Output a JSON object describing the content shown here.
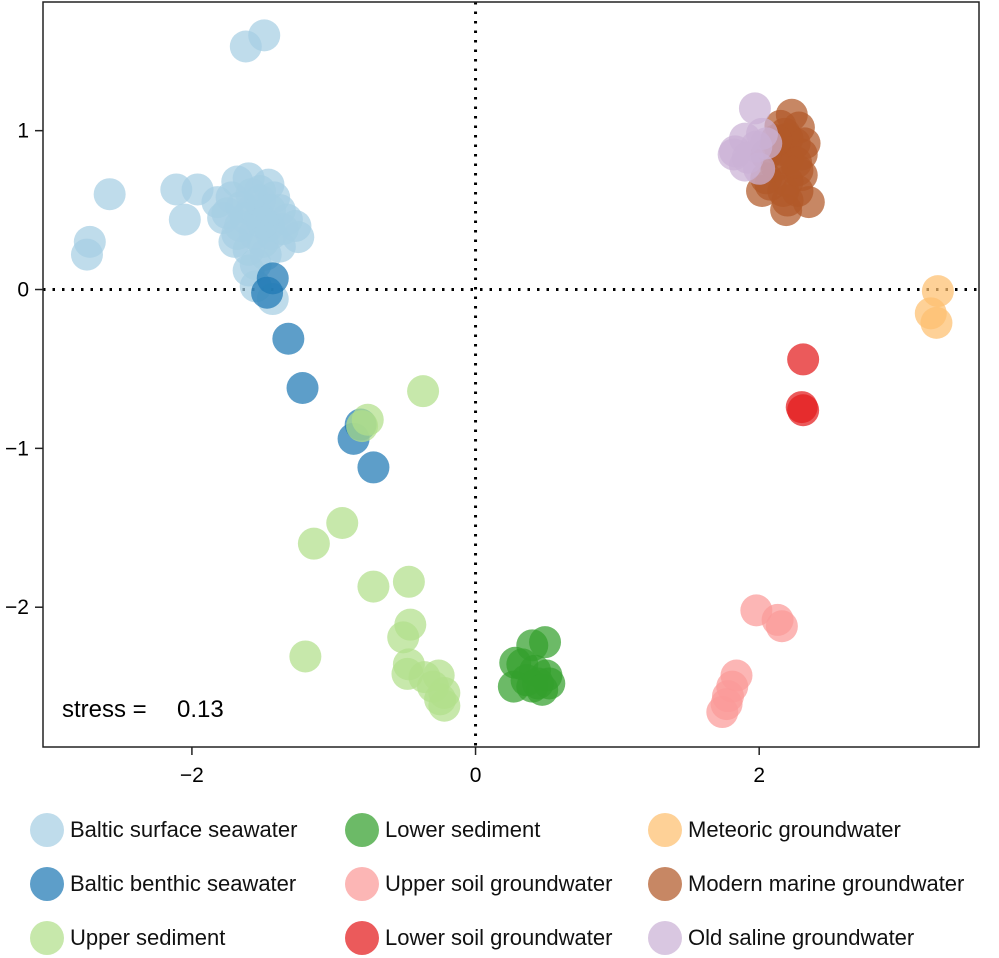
{
  "chart_data": {
    "type": "scatter",
    "xlabel": "",
    "ylabel": "",
    "xlim": [
      -3.05,
      3.55
    ],
    "ylim": [
      -2.88,
      1.81
    ],
    "xticks": [
      -2,
      0,
      2
    ],
    "yticks": [
      1,
      0,
      -1,
      -2
    ],
    "xtick_labels": [
      "−2",
      "0",
      "2"
    ],
    "ytick_labels": [
      "1",
      "0",
      "−1",
      "−2"
    ],
    "reference_lines": {
      "x": 0,
      "y": 0,
      "style": "dotted"
    },
    "annotation": {
      "label": "stress =",
      "value": "0.13"
    },
    "legend_position": "bottom",
    "series": [
      {
        "name": "Baltic surface seawater",
        "color": "#a6cee3",
        "points": [
          [
            -1.62,
            1.53
          ],
          [
            -1.49,
            1.6
          ],
          [
            -2.72,
            0.3
          ],
          [
            -2.74,
            0.22
          ],
          [
            -2.58,
            0.6
          ],
          [
            -2.11,
            0.63
          ],
          [
            -1.96,
            0.63
          ],
          [
            -2.05,
            0.44
          ],
          [
            -1.82,
            0.55
          ],
          [
            -1.75,
            0.48
          ],
          [
            -1.68,
            0.68
          ],
          [
            -1.6,
            0.7
          ],
          [
            -1.52,
            0.62
          ],
          [
            -1.46,
            0.66
          ],
          [
            -1.42,
            0.58
          ],
          [
            -1.38,
            0.5
          ],
          [
            -1.33,
            0.44
          ],
          [
            -1.27,
            0.4
          ],
          [
            -1.25,
            0.33
          ],
          [
            -1.38,
            0.27
          ],
          [
            -1.48,
            0.22
          ],
          [
            -1.55,
            0.16
          ],
          [
            -1.6,
            0.12
          ],
          [
            -1.7,
            0.3
          ],
          [
            -1.78,
            0.45
          ],
          [
            -1.65,
            0.52
          ],
          [
            -1.58,
            0.5
          ],
          [
            -1.52,
            0.45
          ],
          [
            -1.46,
            0.4
          ],
          [
            -1.56,
            0.35
          ],
          [
            -1.66,
            0.4
          ],
          [
            -1.62,
            0.45
          ],
          [
            -1.5,
            0.3
          ],
          [
            -1.44,
            0.35
          ],
          [
            -1.52,
            0.56
          ],
          [
            -1.72,
            0.58
          ],
          [
            -1.58,
            0.6
          ],
          [
            -1.45,
            0.5
          ],
          [
            -1.6,
            0.25
          ],
          [
            -1.55,
            0.02
          ],
          [
            -1.43,
            -0.06
          ],
          [
            -1.68,
            0.35
          ],
          [
            -1.36,
            0.38
          ],
          [
            -1.5,
            0.42
          ]
        ]
      },
      {
        "name": "Baltic benthic seawater",
        "color": "#1f78b4",
        "points": [
          [
            -1.43,
            0.07
          ],
          [
            -1.47,
            -0.02
          ],
          [
            -1.32,
            -0.31
          ],
          [
            -1.22,
            -0.62
          ],
          [
            -0.81,
            -0.85
          ],
          [
            -0.86,
            -0.94
          ],
          [
            -0.72,
            -1.12
          ]
        ]
      },
      {
        "name": "Upper sediment",
        "color": "#b2df8a",
        "points": [
          [
            -0.37,
            -0.64
          ],
          [
            -0.76,
            -0.82
          ],
          [
            -0.8,
            -0.86
          ],
          [
            -0.94,
            -1.47
          ],
          [
            -1.14,
            -1.6
          ],
          [
            -0.72,
            -1.87
          ],
          [
            -0.47,
            -1.84
          ],
          [
            -1.2,
            -2.31
          ],
          [
            -0.46,
            -2.11
          ],
          [
            -0.51,
            -2.19
          ],
          [
            -0.47,
            -2.36
          ],
          [
            -0.48,
            -2.42
          ],
          [
            -0.36,
            -2.44
          ],
          [
            -0.26,
            -2.43
          ],
          [
            -0.3,
            -2.5
          ],
          [
            -0.22,
            -2.54
          ],
          [
            -0.25,
            -2.58
          ],
          [
            -0.22,
            -2.62
          ]
        ]
      },
      {
        "name": "Lower sediment",
        "color": "#33a02c",
        "points": [
          [
            0.49,
            -2.22
          ],
          [
            0.4,
            -2.24
          ],
          [
            0.28,
            -2.35
          ],
          [
            0.33,
            -2.36
          ],
          [
            0.42,
            -2.4
          ],
          [
            0.5,
            -2.43
          ],
          [
            0.36,
            -2.46
          ],
          [
            0.44,
            -2.48
          ],
          [
            0.52,
            -2.48
          ],
          [
            0.27,
            -2.5
          ],
          [
            0.4,
            -2.5
          ],
          [
            0.47,
            -2.52
          ]
        ]
      },
      {
        "name": "Upper soil groundwater",
        "color": "#fb9a99",
        "points": [
          [
            1.98,
            -2.02
          ],
          [
            2.13,
            -2.08
          ],
          [
            2.16,
            -2.12
          ],
          [
            1.84,
            -2.43
          ],
          [
            1.81,
            -2.5
          ],
          [
            1.78,
            -2.56
          ],
          [
            1.77,
            -2.61
          ],
          [
            1.74,
            -2.66
          ]
        ]
      },
      {
        "name": "Lower soil groundwater",
        "color": "#e31a1c",
        "points": [
          [
            2.31,
            -0.44
          ],
          [
            2.3,
            -0.74
          ],
          [
            2.31,
            -0.76
          ]
        ]
      },
      {
        "name": "Meteoric groundwater",
        "color": "#fdbf6f",
        "points": [
          [
            3.26,
            -0.01
          ],
          [
            3.21,
            -0.15
          ],
          [
            3.25,
            -0.21
          ]
        ]
      },
      {
        "name": "Modern marine groundwater",
        "color": "#b15928",
        "points": [
          [
            2.23,
            1.1
          ],
          [
            2.28,
            1.02
          ],
          [
            2.15,
            1.03
          ],
          [
            2.2,
            0.95
          ],
          [
            2.25,
            0.92
          ],
          [
            2.15,
            0.88
          ],
          [
            2.3,
            0.85
          ],
          [
            2.2,
            0.82
          ],
          [
            2.12,
            0.78
          ],
          [
            2.27,
            0.75
          ],
          [
            2.05,
            0.7
          ],
          [
            2.2,
            0.68
          ],
          [
            2.3,
            0.72
          ],
          [
            2.17,
            0.62
          ],
          [
            2.08,
            0.66
          ],
          [
            2.27,
            0.62
          ],
          [
            2.35,
            0.55
          ],
          [
            2.19,
            0.5
          ],
          [
            2.05,
            0.85
          ],
          [
            2.18,
            0.98
          ],
          [
            2.32,
            0.92
          ],
          [
            2.12,
            0.94
          ],
          [
            2.26,
            0.8
          ],
          [
            2.02,
            0.62
          ],
          [
            2.2,
            0.56
          ]
        ]
      },
      {
        "name": "Old saline groundwater",
        "color": "#cab2d6",
        "points": [
          [
            1.97,
            1.14
          ],
          [
            1.9,
            0.95
          ],
          [
            1.98,
            0.9
          ],
          [
            2.02,
            0.98
          ],
          [
            1.83,
            0.87
          ],
          [
            1.82,
            0.85
          ],
          [
            1.9,
            0.78
          ],
          [
            2.0,
            0.76
          ],
          [
            1.92,
            0.83
          ],
          [
            2.05,
            0.92
          ]
        ]
      }
    ]
  }
}
